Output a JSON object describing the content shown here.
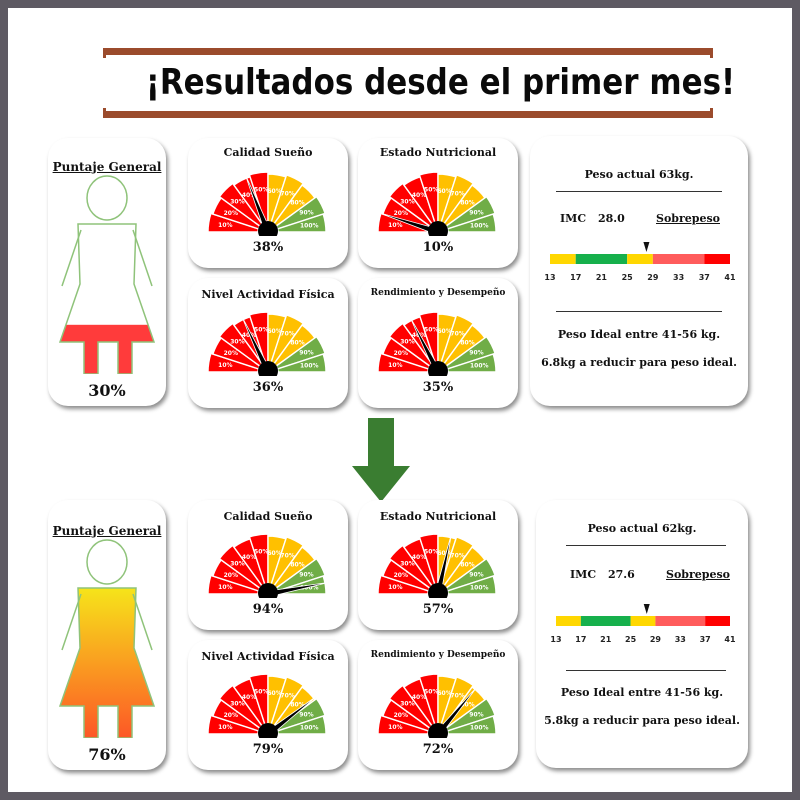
{
  "title": "¡Resultados desde el primer mes!",
  "colors": {
    "gauge_segments": [
      "#ff0000",
      "#ff0000",
      "#ff0000",
      "#ff0000",
      "#ff0000",
      "#ffc000",
      "#ffc000",
      "#ffc000",
      "#70ad47",
      "#70ad47"
    ],
    "body_before_fill": "#ff3b3b",
    "body_after_top": "#f6e61a",
    "body_after_bottom": "#ff2a2a",
    "bmi_scale": [
      "#ffd700",
      "#16b04c",
      "#ffd700",
      "#ff5c5c",
      "#ff0000"
    ],
    "arrow": "#3a7d31",
    "banner": "#9b4b2c"
  },
  "gauge_ticks": [
    "10%",
    "20%",
    "30%",
    "40%",
    "50%",
    "60%",
    "70%",
    "80%",
    "90%",
    "100%"
  ],
  "before": {
    "overall": {
      "label": "Puntaje General",
      "value": "30%",
      "level": 0.3
    },
    "gauges": [
      {
        "title": "Calidad Sueño",
        "value": "38%",
        "level": 0.38
      },
      {
        "title": "Estado Nutricional",
        "value": "10%",
        "level": 0.1
      },
      {
        "title": "Nivel Actividad Física",
        "value": "36%",
        "level": 0.36
      },
      {
        "title": "Rendimiento y Desempeño",
        "value": "35%",
        "level": 0.35
      }
    ],
    "weight": {
      "current": "Peso actual 63kg.",
      "imc_label": "IMC",
      "imc_value": "28.0",
      "status": "Sobrepeso",
      "bmi_ticks": [
        "13",
        "17",
        "21",
        "25",
        "29",
        "33",
        "37",
        "41"
      ],
      "bmi": 28.0,
      "ideal": "Peso Ideal entre 41-56 kg.",
      "reduce": "6.8kg a reducir para peso ideal."
    }
  },
  "after": {
    "overall": {
      "label": "Puntaje General",
      "value": "76%",
      "level": 0.76
    },
    "gauges": [
      {
        "title": "Calidad Sueño",
        "value": "94%",
        "level": 0.94
      },
      {
        "title": "Estado Nutricional",
        "value": "57%",
        "level": 0.57
      },
      {
        "title": "Nivel Actividad Física",
        "value": "79%",
        "level": 0.79
      },
      {
        "title": "Rendimiento y Desempeño",
        "value": "72%",
        "level": 0.72
      }
    ],
    "weight": {
      "current": "Peso actual 62kg.",
      "imc_label": "IMC",
      "imc_value": "27.6",
      "status": "Sobrepeso",
      "bmi_ticks": [
        "13",
        "17",
        "21",
        "25",
        "29",
        "33",
        "37",
        "41"
      ],
      "bmi": 27.6,
      "ideal": "Peso Ideal entre 41-56 kg.",
      "reduce": "5.8kg a reducir para peso ideal."
    }
  }
}
